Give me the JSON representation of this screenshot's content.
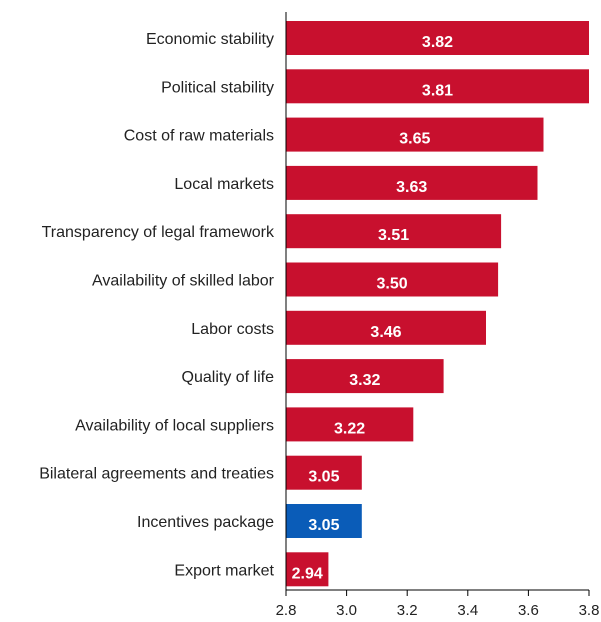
{
  "chart_data": {
    "type": "bar",
    "orientation": "horizontal",
    "categories": [
      "Economic stability",
      "Political stability",
      "Cost of raw materials",
      "Local markets",
      "Transparency of legal framework",
      "Availability of skilled labor",
      "Labor costs",
      "Quality of life",
      "Availability of local suppliers",
      "Bilateral agreements and treaties",
      "Incentives package",
      "Export market"
    ],
    "values": [
      3.82,
      3.81,
      3.65,
      3.63,
      3.51,
      3.5,
      3.46,
      3.32,
      3.22,
      3.05,
      3.05,
      2.94
    ],
    "value_labels": [
      "3.82",
      "3.81",
      "3.65",
      "3.63",
      "3.51",
      "3.50",
      "3.46",
      "3.32",
      "3.22",
      "3.05",
      "3.05",
      "2.94"
    ],
    "bar_colors": [
      "#c8102e",
      "#c8102e",
      "#c8102e",
      "#c8102e",
      "#c8102e",
      "#c8102e",
      "#c8102e",
      "#c8102e",
      "#c8102e",
      "#c8102e",
      "#0a5cb8",
      "#c8102e"
    ],
    "xlim": [
      2.8,
      3.8
    ],
    "xticks": [
      "2.8",
      "3.0",
      "3.2",
      "3.4",
      "3.6",
      "3.8"
    ],
    "grid": false,
    "legend": "none"
  }
}
